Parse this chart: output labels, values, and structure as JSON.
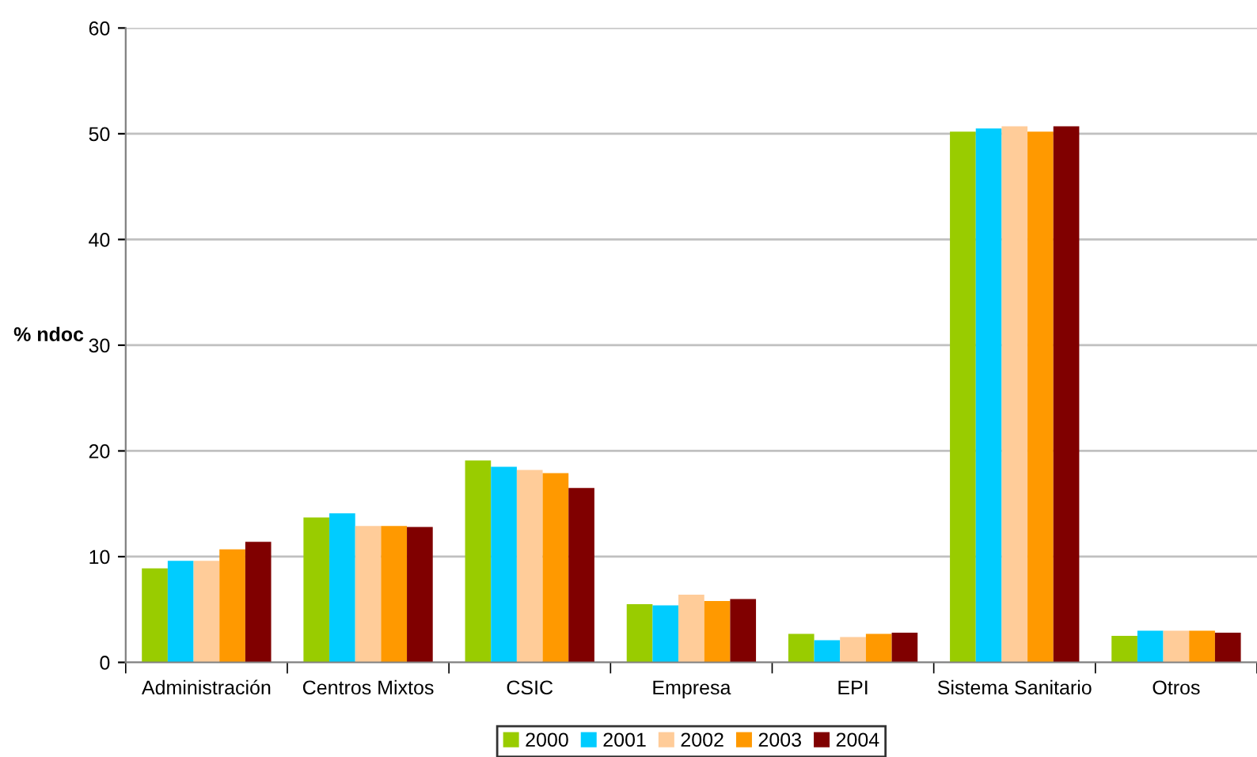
{
  "chart_data": {
    "type": "bar",
    "ylabel": "% ndoc",
    "categories": [
      "Administración",
      "Centros Mixtos",
      "CSIC",
      "Empresa",
      "EPI",
      "Sistema Sanitario",
      "Otros"
    ],
    "series": [
      {
        "name": "2000",
        "color": "#99cc00",
        "values": [
          8.9,
          13.7,
          19.1,
          5.5,
          2.7,
          50.2,
          2.5
        ]
      },
      {
        "name": "2001",
        "color": "#00ccff",
        "values": [
          9.6,
          14.1,
          18.5,
          5.4,
          2.1,
          50.5,
          3.0
        ]
      },
      {
        "name": "2002",
        "color": "#ffcc99",
        "values": [
          9.6,
          12.9,
          18.2,
          6.4,
          2.4,
          50.7,
          3.0
        ]
      },
      {
        "name": "2003",
        "color": "#ff9900",
        "values": [
          10.7,
          12.9,
          17.9,
          5.8,
          2.7,
          50.2,
          3.0
        ]
      },
      {
        "name": "2004",
        "color": "#800000",
        "values": [
          11.4,
          12.8,
          16.5,
          6.0,
          2.8,
          50.7,
          2.8
        ]
      }
    ],
    "ylim": [
      0,
      60
    ],
    "yticks": [
      0,
      10,
      20,
      30,
      40,
      50,
      60
    ],
    "grid": "y",
    "legend": "bottom"
  }
}
